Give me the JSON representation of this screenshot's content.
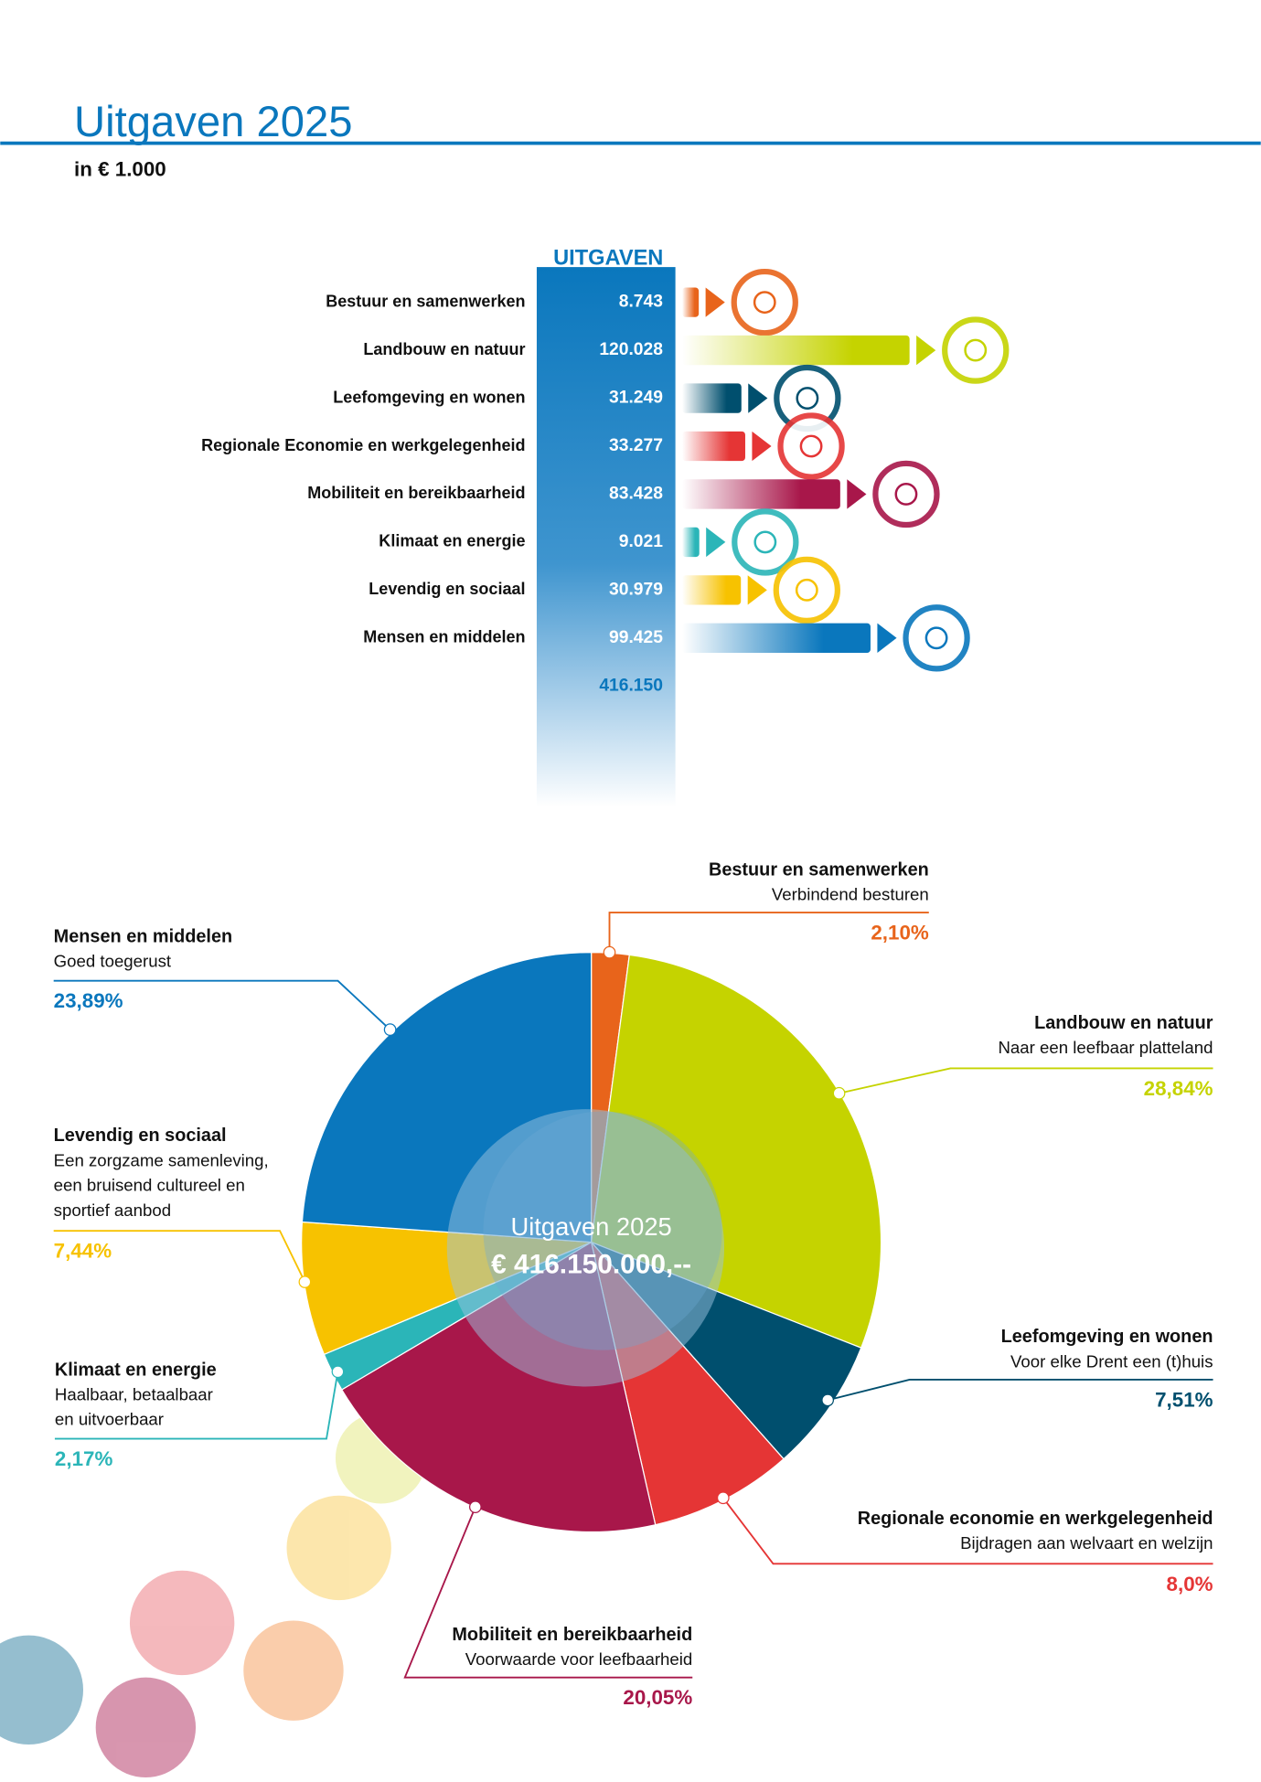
{
  "header": {
    "title": "Uitgaven 2025",
    "subtitle": "in € 1.000"
  },
  "chart_data": [
    {
      "type": "bar",
      "column_title": "UITGAVEN",
      "categories": [
        "Bestuur en samenwerken",
        "Landbouw en natuur",
        "Leefomgeving en wonen",
        "Regionale Economie en werkgelegenheid",
        "Mobiliteit en bereikbaarheid",
        "Klimaat en energie",
        "Levendig en sociaal",
        "Mensen en middelen"
      ],
      "values": [
        8743,
        120028,
        31249,
        33277,
        83428,
        9021,
        30979,
        99425
      ],
      "value_labels": [
        "8.743",
        "120.028",
        "31.249",
        "33.277",
        "83.428",
        "9.021",
        "30.979",
        "99.425"
      ],
      "colors": [
        "#e8641b",
        "#c5d300",
        "#004f6e",
        "#e53535",
        "#a8174a",
        "#2bb5b8",
        "#f7c200",
        "#0a77bd"
      ],
      "total": {
        "value": 416150,
        "label": "416.150"
      }
    },
    {
      "type": "pie",
      "center_title": "Uitgaven 2025",
      "center_total": {
        "value": 416150000,
        "label": "€ 416.150.000,--"
      },
      "categories": [
        "Bestuur en samenwerken",
        "Landbouw en natuur",
        "Leefomgeving en wonen",
        "Regionale economie en werkgelegenheid",
        "Mobiliteit en bereikbaarheid",
        "Klimaat en energie",
        "Levendig en sociaal",
        "Mensen en middelen"
      ],
      "subtitles": [
        [
          "Verbindend besturen"
        ],
        [
          "Naar een leefbaar platteland"
        ],
        [
          "Voor elke Drent een (t)huis"
        ],
        [
          "Bijdragen aan welvaart en welzijn"
        ],
        [
          "Voorwaarde voor leefbaarheid"
        ],
        [
          "Haalbaar, betaalbaar",
          "en uitvoerbaar"
        ],
        [
          "Een zorgzame samenleving,",
          "een bruisend cultureel en",
          "sportief aanbod"
        ],
        [
          "Goed toegerust"
        ]
      ],
      "values": [
        2.1,
        28.84,
        7.51,
        8.0,
        20.05,
        2.17,
        7.44,
        23.89
      ],
      "value_labels": [
        "2,10%",
        "28,84%",
        "7,51%",
        "8,0%",
        "20,05%",
        "2,17%",
        "7,44%",
        "23,89%"
      ],
      "colors": [
        "#e8641b",
        "#c5d300",
        "#004f6e",
        "#e53535",
        "#a8174a",
        "#2bb5b8",
        "#f7c200",
        "#0a77bd"
      ]
    }
  ]
}
